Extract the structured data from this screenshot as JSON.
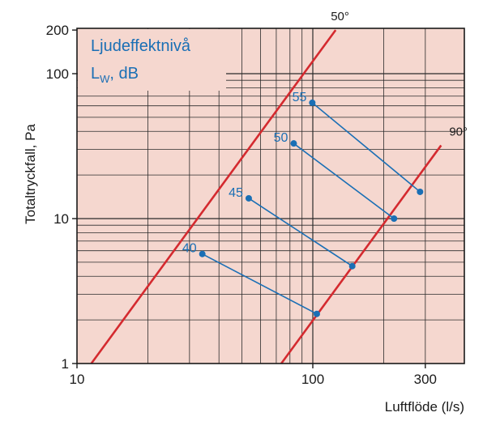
{
  "chart_data": {
    "type": "line",
    "title": "",
    "xlabel": "Luftflöde (l/s)",
    "ylabel": "Totaltryckfall, Pa",
    "xscale": "log",
    "yscale": "log",
    "xlim": [
      10,
      350
    ],
    "ylim": [
      1,
      200
    ],
    "xticks": [
      "10",
      "100",
      "300"
    ],
    "yticks": [
      "1",
      "10",
      "100",
      "200"
    ],
    "grid": true,
    "legend": {
      "title_line1": "Ljudeffektnivå",
      "title_line2_main": "L",
      "title_line2_sub": "W",
      "title_line2_rest": ", dB",
      "placement": "top-left"
    },
    "colors": {
      "background": "#f5d7cf",
      "grid": "#2b2b2b",
      "angle_lines": "#d42a2f",
      "level_lines": "#1a6fb5",
      "points": "#1a6fb5"
    },
    "series": [
      {
        "name": "50°",
        "x": [
          11.5,
          125
        ],
        "y": [
          1.0,
          200
        ]
      },
      {
        "name": "90°",
        "x": [
          73.5,
          350
        ],
        "y": [
          1.0,
          32
        ]
      }
    ],
    "sound_levels": [
      {
        "label": "40",
        "x1": 34,
        "y1": 5.7,
        "x2": 104,
        "y2": 2.2
      },
      {
        "label": "45",
        "x1": 53.5,
        "y1": 13.8,
        "x2": 147,
        "y2": 4.7
      },
      {
        "label": "50",
        "x1": 83,
        "y1": 33,
        "x2": 221,
        "y2": 10.0
      },
      {
        "label": "55",
        "x1": 99.5,
        "y1": 63,
        "x2": 285,
        "y2": 15.3
      }
    ]
  }
}
